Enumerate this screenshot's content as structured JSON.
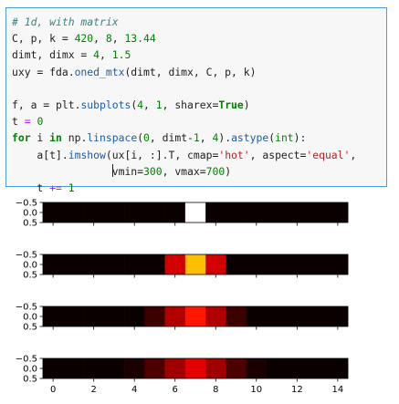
{
  "code_lines": [
    [
      {
        "t": "# 1d, with matrix",
        "c": "comment"
      }
    ],
    [
      {
        "t": "C, p, k = "
      },
      {
        "t": "420",
        "c": "number"
      },
      {
        "t": ", "
      },
      {
        "t": "8",
        "c": "number"
      },
      {
        "t": ", "
      },
      {
        "t": "13.44",
        "c": "number"
      }
    ],
    [
      {
        "t": "dimt, dimx = "
      },
      {
        "t": "4",
        "c": "number"
      },
      {
        "t": ", "
      },
      {
        "t": "1.5",
        "c": "number"
      }
    ],
    [
      {
        "t": "uxy = fda."
      },
      {
        "t": "oned_mtx",
        "c": "attr"
      },
      {
        "t": "(dimt, dimx, C, p, k)"
      }
    ],
    [
      {
        "t": ""
      }
    ],
    [
      {
        "t": "f, a = plt."
      },
      {
        "t": "subplots",
        "c": "attr"
      },
      {
        "t": "("
      },
      {
        "t": "4",
        "c": "number"
      },
      {
        "t": ", "
      },
      {
        "t": "1",
        "c": "number"
      },
      {
        "t": ", sharex="
      },
      {
        "t": "True",
        "c": "keyword"
      },
      {
        "t": ")"
      }
    ],
    [
      {
        "t": "t "
      },
      {
        "t": "=",
        "c": "op"
      },
      {
        "t": " "
      },
      {
        "t": "0",
        "c": "number"
      }
    ],
    [
      {
        "t": "for",
        "c": "keyword"
      },
      {
        "t": " i "
      },
      {
        "t": "in",
        "c": "keyword"
      },
      {
        "t": " np."
      },
      {
        "t": "linspace",
        "c": "attr"
      },
      {
        "t": "("
      },
      {
        "t": "0",
        "c": "number"
      },
      {
        "t": ", dimt-"
      },
      {
        "t": "1",
        "c": "number"
      },
      {
        "t": ", "
      },
      {
        "t": "4",
        "c": "number"
      },
      {
        "t": ")."
      },
      {
        "t": "astype",
        "c": "attr"
      },
      {
        "t": "("
      },
      {
        "t": "int",
        "c": "builtin"
      },
      {
        "t": "):"
      }
    ],
    [
      {
        "t": "    a[t]."
      },
      {
        "t": "imshow",
        "c": "attr"
      },
      {
        "t": "(ux[i, :].T, cmap="
      },
      {
        "t": "'hot'",
        "c": "string"
      },
      {
        "t": ", aspect="
      },
      {
        "t": "'equal'",
        "c": "string"
      },
      {
        "t": ","
      }
    ],
    [
      {
        "t": "                "
      },
      {
        "t": "",
        "c": "cursor"
      },
      {
        "t": "vmin="
      },
      {
        "t": "300",
        "c": "number"
      },
      {
        "t": ", vmax="
      },
      {
        "t": "700",
        "c": "number"
      },
      {
        "t": ")"
      }
    ],
    [
      {
        "t": "    t "
      },
      {
        "t": "+=",
        "c": "op"
      },
      {
        "t": " "
      },
      {
        "t": "1",
        "c": "number"
      }
    ]
  ],
  "chart_data": {
    "type": "heatmap",
    "cmap": "hot",
    "vmin": 300,
    "vmax": 700,
    "sharex": true,
    "x_ticks": [
      0,
      2,
      4,
      6,
      8,
      10,
      12,
      14
    ],
    "x_tick_labels": [
      "0",
      "2",
      "4",
      "6",
      "8",
      "10",
      "12",
      "14"
    ],
    "y_ticks": [
      -0.5,
      0.0,
      0.5
    ],
    "y_tick_labels": [
      "−0.5",
      "0.0",
      "0.5"
    ],
    "xlim": [
      -0.5,
      14.5
    ],
    "ylim": [
      0.5,
      -0.5
    ],
    "panels": [
      {
        "values": [
          300,
          300,
          300,
          300,
          300,
          300,
          300,
          700,
          300,
          300,
          300,
          300,
          300,
          300,
          300
        ]
      },
      {
        "values": [
          300,
          300,
          300,
          300,
          300,
          300,
          420,
          560,
          420,
          300,
          300,
          300,
          300,
          300,
          300
        ]
      },
      {
        "values": [
          300,
          300,
          300,
          300,
          300,
          330,
          400,
          460,
          400,
          330,
          300,
          300,
          300,
          300,
          300
        ]
      },
      {
        "values": [
          300,
          300,
          300,
          300,
          310,
          340,
          390,
          430,
          390,
          340,
          310,
          300,
          300,
          300,
          300
        ]
      }
    ],
    "title": "",
    "xlabel": "",
    "ylabel": ""
  }
}
